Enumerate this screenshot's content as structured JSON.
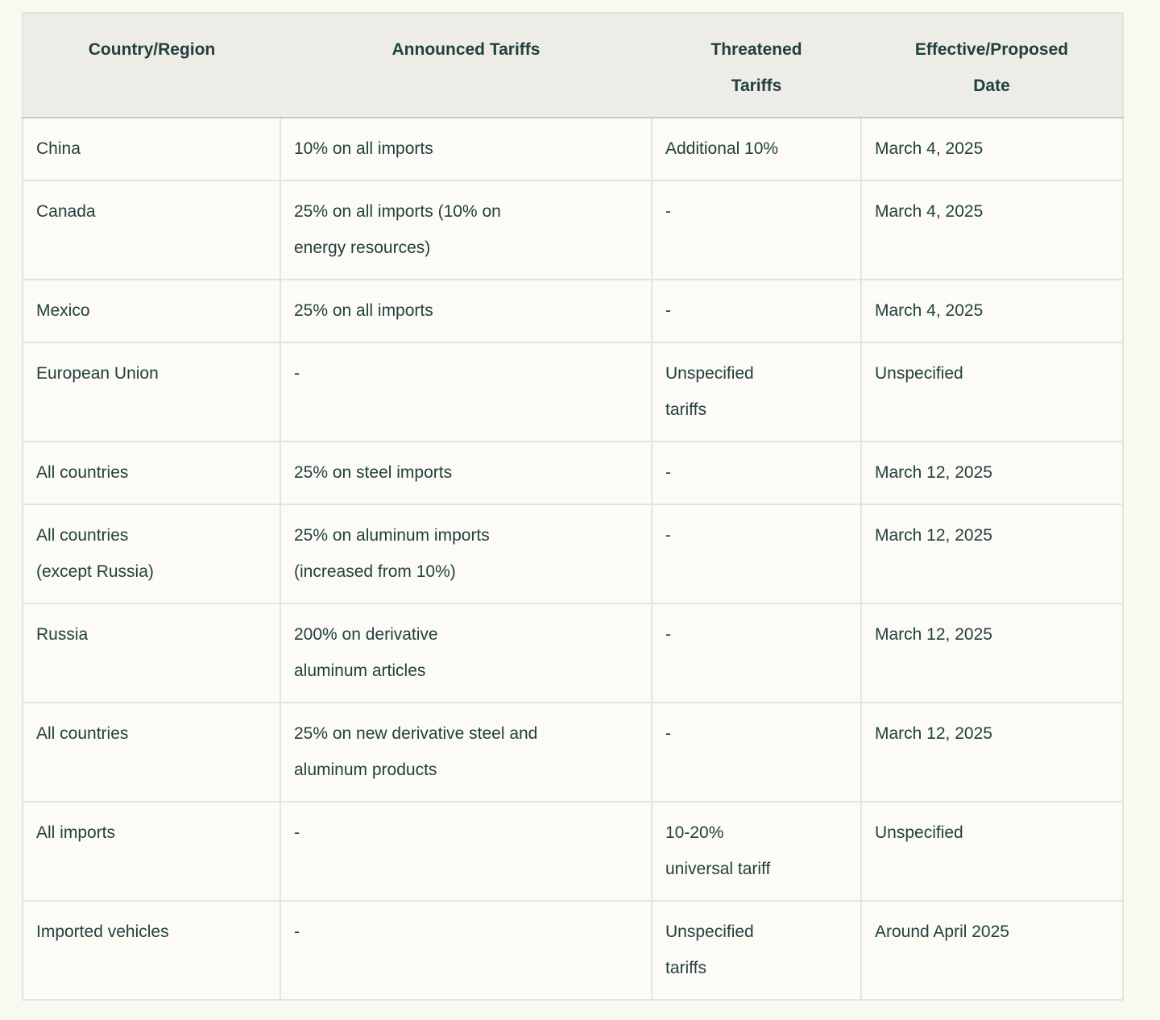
{
  "colors": {
    "page_background": "#f9f8f1",
    "cell_background": "#fcfbf6",
    "header_background": "#edece7",
    "header_bottom_border": "#c9c8c1",
    "cell_border": "#e4e3dc",
    "text": "#21403d"
  },
  "table": {
    "columns": [
      "Country/Region",
      "Announced Tariffs",
      "Threatened\nTariffs",
      "Effective/Proposed\nDate"
    ],
    "rows": [
      [
        "China",
        "10% on all imports",
        "Additional 10%",
        "March 4, 2025"
      ],
      [
        "Canada",
        "25% on all imports (10% on\nenergy resources)",
        "-",
        "March 4, 2025"
      ],
      [
        "Mexico",
        "25% on all imports",
        "-",
        "March 4, 2025"
      ],
      [
        "European Union",
        "-",
        "Unspecified\ntariffs",
        "Unspecified"
      ],
      [
        "All countries",
        "25% on steel imports",
        "-",
        "March 12, 2025"
      ],
      [
        "All countries\n(except Russia)",
        "25% on aluminum imports\n(increased from 10%)",
        "-",
        "March 12, 2025"
      ],
      [
        "Russia",
        "200% on derivative\naluminum articles",
        "-",
        "March 12, 2025"
      ],
      [
        "All countries",
        "25% on new derivative steel and\naluminum products",
        "-",
        "March 12, 2025"
      ],
      [
        "All imports",
        "-",
        "10-20%\nuniversal tariff",
        "Unspecified"
      ],
      [
        "Imported vehicles",
        "-",
        "Unspecified\ntariffs",
        "Around April 2025"
      ]
    ]
  }
}
